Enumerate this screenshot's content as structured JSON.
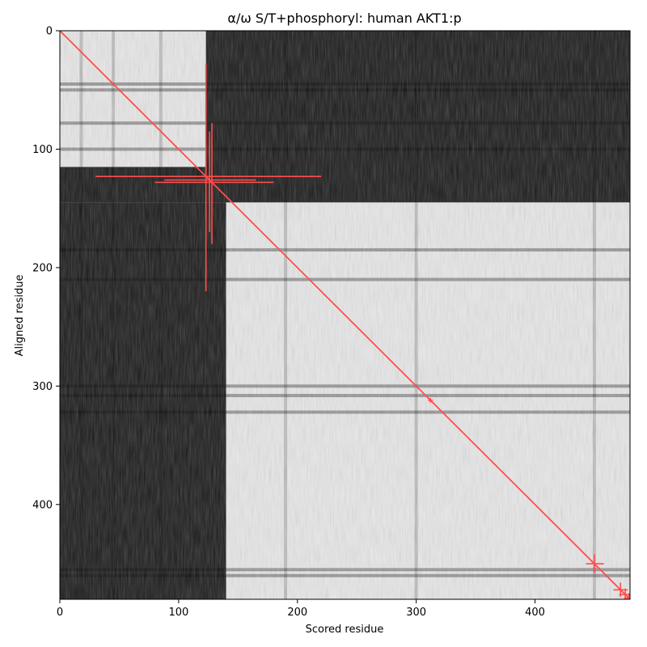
{
  "chart_data": {
    "type": "heatmap",
    "title": "α/ω S/T+phosphoryl: human AKT1:p",
    "xlabel": "Scored residue",
    "ylabel": "Aligned residue",
    "xlim": [
      0,
      480
    ],
    "ylim": [
      480,
      0
    ],
    "x_ticks": [
      "0",
      "100",
      "200",
      "300",
      "400"
    ],
    "y_ticks": [
      "0",
      "100",
      "200",
      "300",
      "400"
    ],
    "colormap": "grayscale (white = high, black = low)",
    "grid": false,
    "legend": "none",
    "blocks": [
      {
        "x": [
          0,
          123
        ],
        "y": [
          0,
          115
        ],
        "level": "light"
      },
      {
        "x": [
          123,
          480
        ],
        "y": [
          0,
          145
        ],
        "level": "dark"
      },
      {
        "x": [
          0,
          123
        ],
        "y": [
          115,
          145
        ],
        "level": "dark"
      },
      {
        "x": [
          0,
          140
        ],
        "y": [
          145,
          480
        ],
        "level": "dark"
      },
      {
        "x": [
          140,
          480
        ],
        "y": [
          145,
          480
        ],
        "level": "light"
      }
    ],
    "stripes_y": [
      45,
      50,
      78,
      100,
      185,
      210,
      300,
      308,
      322,
      455,
      460
    ],
    "stripes_x": [
      18,
      45,
      85,
      190,
      300,
      450
    ],
    "diagonal": {
      "from": [
        0,
        0
      ],
      "to": [
        480,
        480
      ],
      "color": "#ff4d4d"
    },
    "markers": [
      {
        "x": 123,
        "y": 123,
        "err_x": [
          30,
          220
        ],
        "err_y": [
          28,
          220
        ]
      },
      {
        "x": 126,
        "y": 126,
        "err_x": [
          88,
          165
        ],
        "err_y": [
          85,
          170
        ]
      },
      {
        "x": 128,
        "y": 128,
        "err_x": [
          80,
          180
        ],
        "err_y": [
          78,
          180
        ]
      },
      {
        "x": 312,
        "y": 312,
        "err_x": [
          310,
          314
        ],
        "err_y": [
          310,
          314
        ]
      },
      {
        "x": 450,
        "y": 450,
        "err_x": [
          443,
          458
        ],
        "err_y": [
          442,
          458
        ]
      },
      {
        "x": 472,
        "y": 472,
        "err_x": [
          466,
          478
        ],
        "err_y": [
          466,
          478
        ]
      },
      {
        "x": 476,
        "y": 476,
        "err_x": [
          471,
          480
        ],
        "err_y": [
          471,
          480
        ]
      },
      {
        "x": 479,
        "y": 479,
        "err_x": [
          475,
          480
        ],
        "err_y": [
          475,
          480
        ]
      }
    ],
    "marker_color": "#ff4d4d"
  }
}
